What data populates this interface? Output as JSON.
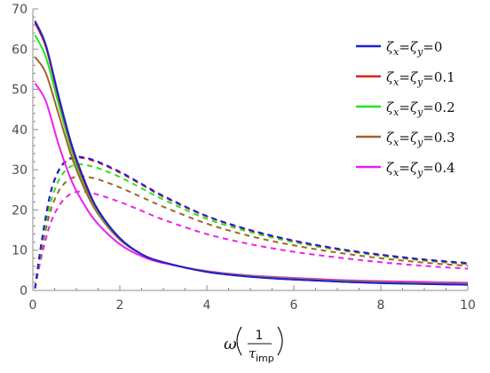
{
  "chart_data": {
    "type": "line",
    "xlabel": {
      "omega": "ω",
      "numerator": "1",
      "tau": "τ",
      "subscript": "imp"
    },
    "ylabel": "",
    "xlim": [
      0,
      10
    ],
    "ylim": [
      0,
      70
    ],
    "x_ticks": [
      "0",
      "2",
      "4",
      "6",
      "8",
      "10"
    ],
    "y_ticks": [
      "0",
      "10",
      "20",
      "30",
      "40",
      "50",
      "60",
      "70"
    ],
    "legend_placement": "top-right",
    "series": [
      {
        "name": "ζx=ζy=0",
        "legend": {
          "z1": "ζ",
          "s1": "x",
          "eq1": "=",
          "z2": "ζ",
          "s2": "y",
          "eq2": "=",
          "val": "0"
        },
        "color": "#1f1fd6",
        "solid_x": [
          0.05,
          0.3,
          0.6,
          0.9,
          1.2,
          1.5,
          2,
          2.5,
          3,
          4,
          5,
          6,
          7,
          8,
          9,
          10
        ],
        "solid_y": [
          67,
          61,
          48,
          36,
          27,
          20,
          13,
          9,
          7,
          4.6,
          3.4,
          2.7,
          2.2,
          1.8,
          1.6,
          1.4
        ],
        "dashed_x": [
          0.05,
          0.2,
          0.4,
          0.6,
          0.8,
          1,
          1.2,
          1.5,
          2,
          2.5,
          3,
          4,
          5,
          6,
          7,
          8,
          9,
          10
        ],
        "dashed_y": [
          0.5,
          12,
          24,
          30,
          32.5,
          33.2,
          33,
          32,
          29.5,
          26.5,
          23.5,
          18.5,
          15,
          12.4,
          10.4,
          8.9,
          7.7,
          6.8
        ]
      },
      {
        "name": "ζx=ζy=0.1",
        "legend": {
          "z1": "ζ",
          "s1": "x",
          "eq1": "=",
          "z2": "ζ",
          "s2": "y",
          "eq2": "=",
          "val": "0.1"
        },
        "color": "#e01f1f",
        "solid_x": [
          0.05,
          0.3,
          0.6,
          0.9,
          1.2,
          1.5,
          2,
          2.5,
          3,
          4,
          5,
          6,
          7,
          8,
          9,
          10
        ],
        "solid_y": [
          66.5,
          60.5,
          47.5,
          35.5,
          26.5,
          19.8,
          12.9,
          9,
          7,
          4.6,
          3.4,
          2.7,
          2.2,
          1.85,
          1.6,
          1.4
        ],
        "dashed_x": [
          0.05,
          0.2,
          0.4,
          0.6,
          0.8,
          1,
          1.2,
          1.5,
          2,
          2.5,
          3,
          4,
          5,
          6,
          7,
          8,
          9,
          10
        ],
        "dashed_y": [
          0.5,
          12,
          23.8,
          29.8,
          32.3,
          33,
          32.8,
          31.8,
          29.3,
          26.3,
          23.3,
          18.4,
          14.9,
          12.3,
          10.3,
          8.8,
          7.6,
          6.7
        ]
      },
      {
        "name": "ζx=ζy=0.2",
        "legend": {
          "z1": "ζ",
          "s1": "x",
          "eq1": "=",
          "z2": "ζ",
          "s2": "y",
          "eq2": "=",
          "val": "0.2"
        },
        "color": "#22e622",
        "solid_x": [
          0.05,
          0.3,
          0.6,
          0.9,
          1.2,
          1.5,
          2,
          2.5,
          3,
          4,
          5,
          6,
          7,
          8,
          9,
          10
        ],
        "solid_y": [
          63.5,
          58,
          46,
          34.5,
          26,
          19.5,
          12.8,
          9,
          7,
          4.7,
          3.5,
          2.8,
          2.3,
          1.95,
          1.7,
          1.5
        ],
        "dashed_x": [
          0.05,
          0.2,
          0.4,
          0.6,
          0.8,
          1,
          1.2,
          1.5,
          2,
          2.5,
          3,
          4,
          5,
          6,
          7,
          8,
          9,
          10
        ],
        "dashed_y": [
          0.5,
          11,
          21.5,
          27.5,
          30.3,
          31.3,
          31.2,
          30.4,
          28.2,
          25.4,
          22.6,
          17.8,
          14.5,
          12,
          10.1,
          8.6,
          7.4,
          6.5
        ]
      },
      {
        "name": "ζx=ζy=0.3",
        "legend": {
          "z1": "ζ",
          "s1": "x",
          "eq1": "=",
          "z2": "ζ",
          "s2": "y",
          "eq2": "=",
          "val": "0.3"
        },
        "color": "#a0652a",
        "solid_x": [
          0.05,
          0.3,
          0.6,
          0.9,
          1.2,
          1.5,
          2,
          2.5,
          3,
          4,
          5,
          6,
          7,
          8,
          9,
          10
        ],
        "solid_y": [
          58,
          54,
          43.5,
          33,
          25,
          19,
          12.6,
          9,
          7,
          4.7,
          3.6,
          2.9,
          2.4,
          2.05,
          1.8,
          1.6
        ],
        "dashed_x": [
          0.05,
          0.2,
          0.4,
          0.6,
          0.8,
          1,
          1.2,
          1.5,
          2,
          2.5,
          3,
          4,
          5,
          6,
          7,
          8,
          9,
          10
        ],
        "dashed_y": [
          0.5,
          10,
          19.5,
          24.8,
          27.3,
          28.3,
          28.3,
          27.6,
          25.6,
          23.2,
          20.8,
          16.6,
          13.5,
          11.2,
          9.4,
          8,
          6.9,
          6.1
        ]
      },
      {
        "name": "ζx=ζy=0.4",
        "legend": {
          "z1": "ζ",
          "s1": "x",
          "eq1": "=",
          "z2": "ζ",
          "s2": "y",
          "eq2": "=",
          "val": "0.4"
        },
        "color": "#ee1fee",
        "solid_x": [
          0.05,
          0.3,
          0.6,
          0.9,
          1.2,
          1.5,
          2,
          2.5,
          3,
          4,
          5,
          6,
          7,
          8,
          9,
          10
        ],
        "solid_y": [
          51.5,
          47,
          36,
          27,
          21,
          16.5,
          11.5,
          8.5,
          6.8,
          4.8,
          3.7,
          3.1,
          2.6,
          2.3,
          2.1,
          1.9
        ],
        "dashed_x": [
          0.05,
          0.2,
          0.4,
          0.6,
          0.8,
          1,
          1.2,
          1.5,
          2,
          2.5,
          3,
          4,
          5,
          6,
          7,
          8,
          9,
          10
        ],
        "dashed_y": [
          0.5,
          8.5,
          16.5,
          21,
          23.5,
          24.5,
          24.5,
          23.8,
          22,
          19.8,
          17.6,
          14,
          11.5,
          9.6,
          8.2,
          7,
          6.1,
          5.4
        ]
      }
    ]
  }
}
